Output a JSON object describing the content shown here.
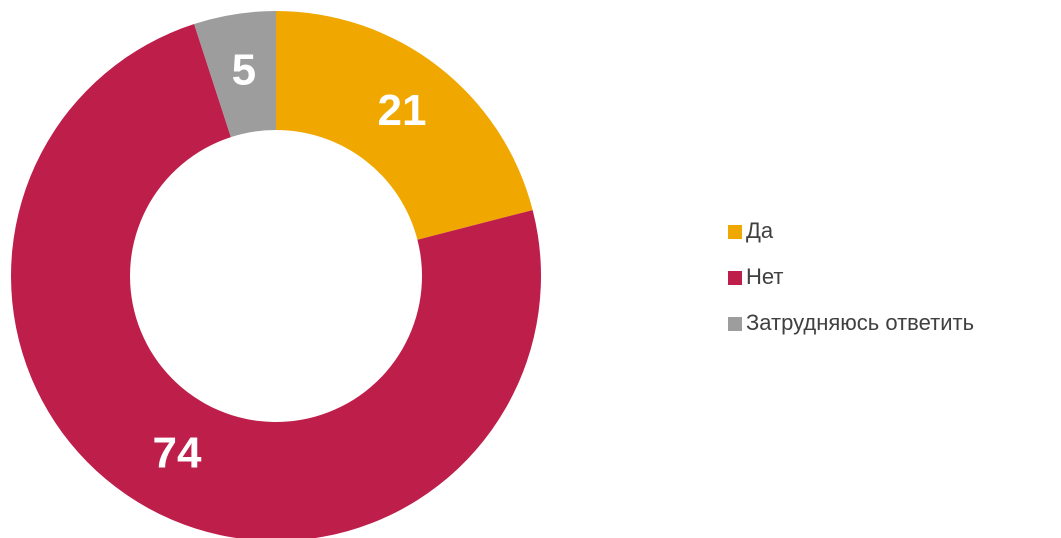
{
  "chart_data": {
    "type": "pie",
    "donut": true,
    "categories": [
      "Да",
      "Нет",
      "Затрудняюсь ответить"
    ],
    "values": [
      21,
      74,
      5
    ],
    "colors": [
      "#f0a800",
      "#be1e4a",
      "#9d9d9d"
    ],
    "legend": "right"
  }
}
